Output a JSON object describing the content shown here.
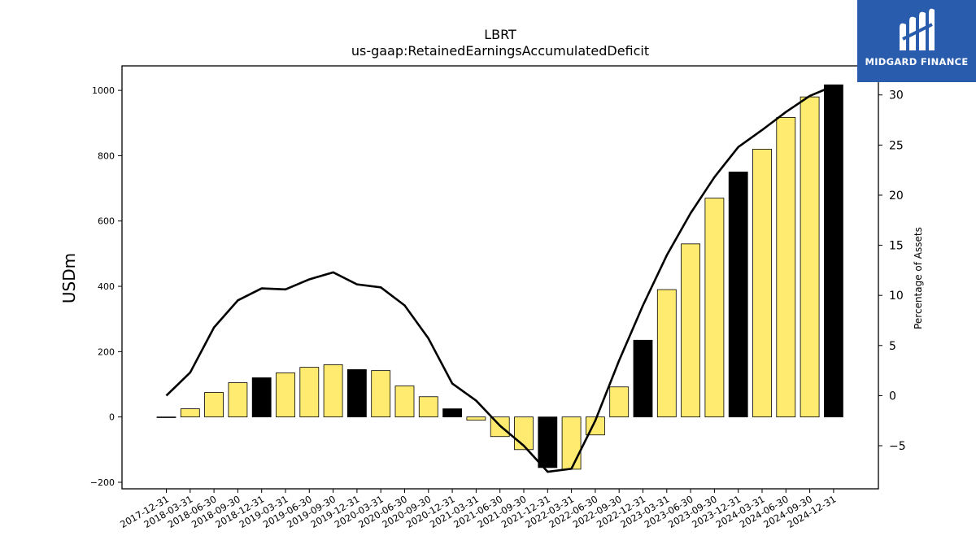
{
  "chart_data": {
    "type": "bar",
    "title": "LBRT",
    "subtitle": "us-gaap:RetainedEarningsAccumulatedDeficit",
    "ylabel": "USDm",
    "y2label": "Percentage of Assets",
    "ylim": [
      -220,
      1075
    ],
    "y2lim": [
      -9.3,
      32.9
    ],
    "yticks": [
      -200,
      0,
      200,
      400,
      600,
      800,
      1000
    ],
    "y2ticks": [
      -5,
      0,
      5,
      10,
      15,
      20,
      25,
      30
    ],
    "categories": [
      "2017-12-31",
      "2018-03-31",
      "2018-06-30",
      "2018-09-30",
      "2018-12-31",
      "2019-03-31",
      "2019-06-30",
      "2019-09-30",
      "2019-12-31",
      "2020-03-31",
      "2020-06-30",
      "2020-09-30",
      "2020-12-31",
      "2021-03-31",
      "2021-06-30",
      "2021-09-30",
      "2021-12-31",
      "2022-03-31",
      "2022-06-30",
      "2022-09-30",
      "2022-12-31",
      "2023-03-31",
      "2023-06-30",
      "2023-09-30",
      "2023-12-31",
      "2024-03-31",
      "2024-06-30",
      "2024-09-30",
      "2024-12-31"
    ],
    "series": [
      {
        "axis": "left",
        "kind": "bar",
        "values": [
          0,
          25,
          75,
          105,
          120,
          135,
          152,
          160,
          145,
          142,
          95,
          62,
          25,
          -10,
          -60,
          -100,
          -155,
          -160,
          -55,
          92,
          235,
          390,
          530,
          670,
          750,
          820,
          917,
          980,
          1017
        ]
      },
      {
        "axis": "right",
        "kind": "line",
        "values": [
          0.0,
          2.3,
          6.8,
          9.5,
          10.7,
          10.6,
          11.6,
          12.3,
          11.1,
          10.8,
          9.0,
          5.7,
          1.2,
          -0.5,
          -3.0,
          -5.0,
          -7.6,
          -7.3,
          -2.5,
          3.5,
          9.0,
          14.0,
          18.2,
          21.8,
          24.8,
          26.5,
          28.3,
          29.9,
          30.9
        ]
      }
    ],
    "bar_colors": {
      "default": "#ffeb70",
      "year_end": "#000000",
      "edge": "#000000",
      "line": "#000000"
    },
    "grid": false
  },
  "logo": {
    "name": "MIDGARD FINANCE",
    "icon": "midgard-m-logo-icon",
    "background": "#2a5cad"
  }
}
